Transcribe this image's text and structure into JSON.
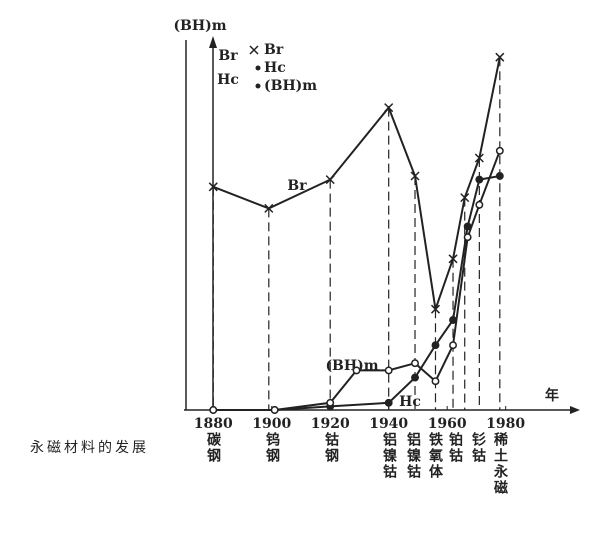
{
  "chart_data": {
    "type": "line",
    "y_axis_labels": [
      "(BH)m",
      "Br",
      "Hc"
    ],
    "x_axis_label": "年",
    "caption": "永磁材料的发展",
    "annotations": [
      "Br",
      "(BH)m",
      "Hc"
    ],
    "materials": [
      "碳钢",
      "钨钢",
      "钴钢",
      "铝镍钴",
      "铝镍钴",
      "铁氧体",
      "铂钴",
      "钐钴",
      "稀土永磁"
    ],
    "xlim": [
      1870,
      2002
    ],
    "xticks": [
      1880,
      1900,
      1920,
      1940,
      1960,
      1980
    ],
    "ylim": [
      0,
      100
    ],
    "series": [
      {
        "name": "Br",
        "color": "#222",
        "marker": "x",
        "x": [
          1880,
          1899,
          1920,
          1940,
          1949,
          1956,
          1962,
          1966,
          1971,
          1978
        ],
        "values": [
          62,
          56,
          64,
          84,
          65,
          28,
          42,
          59,
          70,
          98
        ]
      },
      {
        "name": "Hc",
        "color": "#222",
        "marker": "dot",
        "x": [
          1880,
          1901,
          1920,
          1940,
          1949,
          1956,
          1962,
          1967,
          1971,
          1978
        ],
        "values": [
          0,
          0,
          1,
          2,
          9,
          18,
          25,
          51,
          64,
          65
        ]
      },
      {
        "name": "(BH)m",
        "color": "#222",
        "marker": "circle",
        "x": [
          1880,
          1901,
          1920,
          1929,
          1940,
          1949,
          1956,
          1962,
          1967,
          1971,
          1978
        ],
        "values": [
          0,
          0,
          2,
          11,
          11,
          13,
          8,
          18,
          48,
          57,
          72
        ]
      }
    ]
  }
}
